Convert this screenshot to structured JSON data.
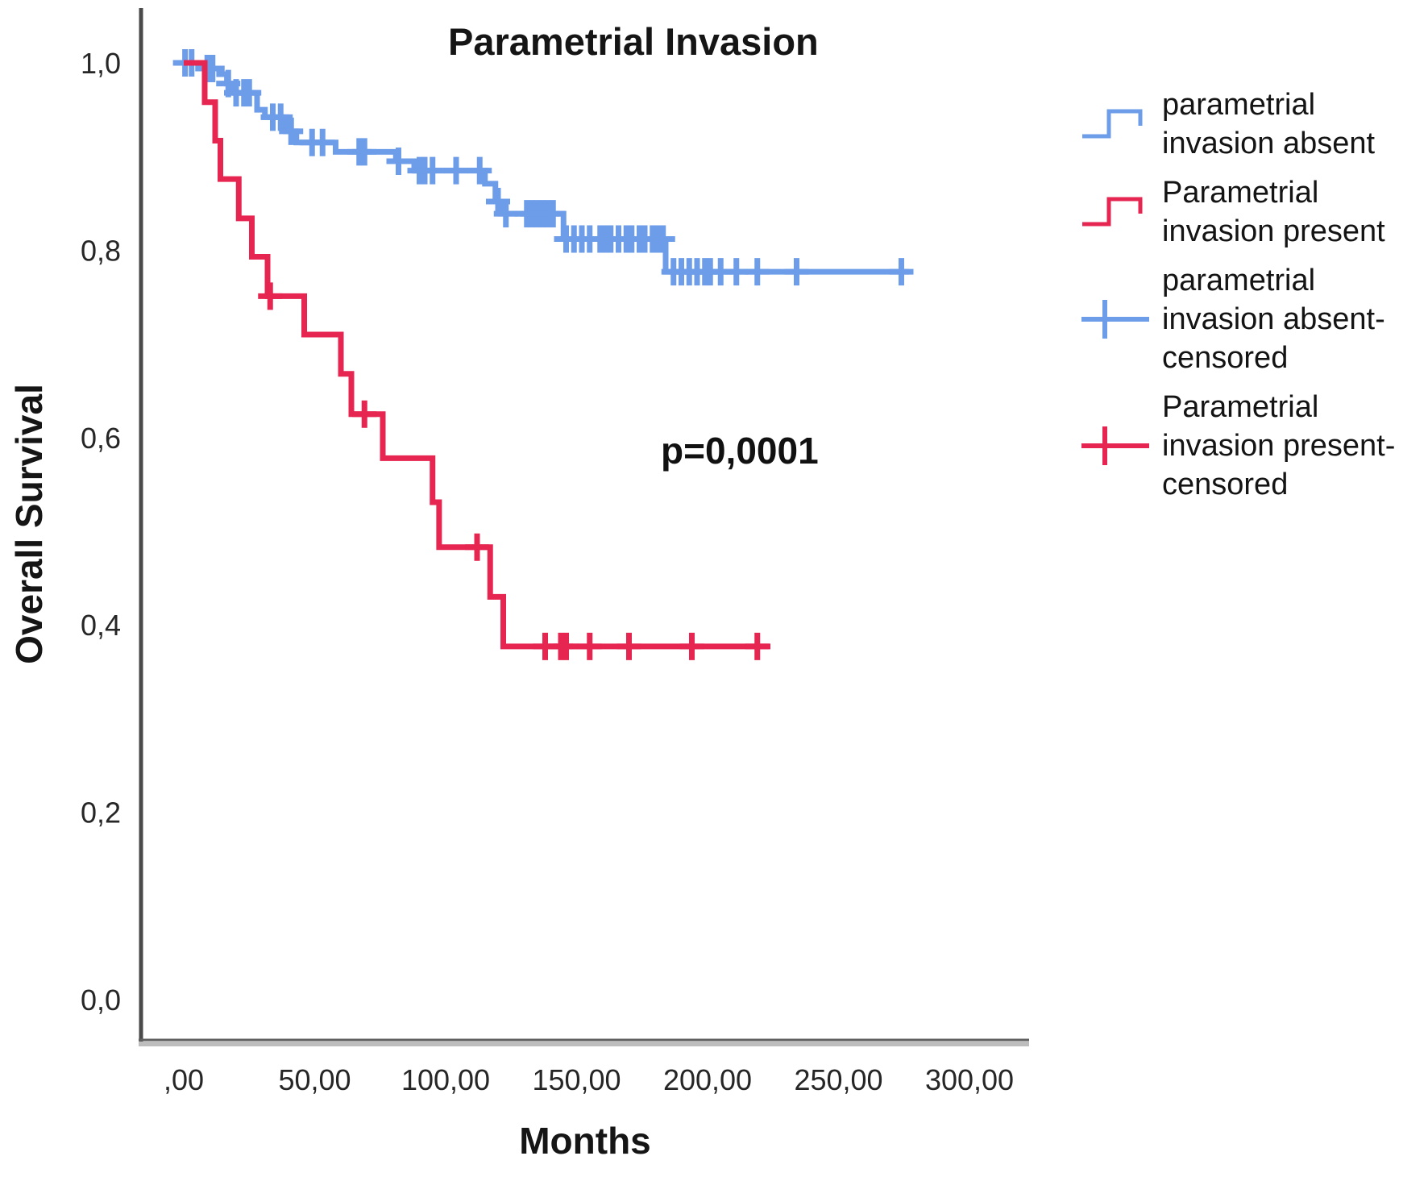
{
  "chart_data": {
    "type": "line",
    "subtype": "kaplan_meier_step_plot",
    "title": "Parametrial Invasion",
    "xlabel": "Months",
    "ylabel": "Overall Survival",
    "annotation": {
      "text": "p=0,0001"
    },
    "xlim": [
      0,
      300
    ],
    "ylim": [
      0.0,
      1.0
    ],
    "grid": "off",
    "x_ticks": {
      "values": [
        0,
        50,
        100,
        150,
        200,
        250,
        300
      ],
      "labels": [
        ",00",
        "50,00",
        "100,00",
        "150,00",
        "200,00",
        "250,00",
        "300,00"
      ]
    },
    "y_ticks": {
      "values": [
        0.0,
        0.2,
        0.4,
        0.6,
        0.8,
        1.0
      ],
      "labels": [
        "0,0",
        "0,2",
        "0,4",
        "0,6",
        "0,8",
        "1,0"
      ]
    },
    "series": [
      {
        "name": "parametrial invasion absent",
        "color": "#6D9DE8",
        "steps": [
          [
            0,
            1.0
          ],
          [
            8,
            0.994
          ],
          [
            13.5,
            0.988
          ],
          [
            16.5,
            0.978
          ],
          [
            19,
            0.968
          ],
          [
            28,
            0.95
          ],
          [
            31,
            0.942
          ],
          [
            39,
            0.927
          ],
          [
            43,
            0.915
          ],
          [
            58,
            0.905
          ],
          [
            81,
            0.895
          ],
          [
            88,
            0.885
          ],
          [
            115,
            0.871
          ],
          [
            119,
            0.852
          ],
          [
            121,
            0.839
          ],
          [
            145,
            0.812
          ],
          [
            184,
            0.777
          ]
        ],
        "end_time": 277,
        "censored_times": [
          0.5,
          3,
          9,
          11,
          17,
          20,
          23,
          25,
          34,
          37,
          41,
          49,
          53,
          67,
          69,
          82,
          90,
          92,
          95,
          104,
          113,
          120,
          123,
          131,
          133,
          135,
          137,
          139,
          141,
          146,
          149,
          152,
          155,
          159,
          161,
          163,
          166,
          169,
          171,
          174,
          176,
          179,
          181,
          183,
          187,
          190,
          193,
          196,
          199,
          201,
          205,
          211,
          219,
          234,
          274
        ]
      },
      {
        "name": "Parametrial invasion present",
        "color": "#E62550",
        "steps": [
          [
            0,
            1.0
          ],
          [
            8,
            0.958
          ],
          [
            12,
            0.917
          ],
          [
            14,
            0.876
          ],
          [
            21,
            0.834
          ],
          [
            26,
            0.793
          ],
          [
            32,
            0.751
          ],
          [
            46,
            0.71
          ],
          [
            60,
            0.668
          ],
          [
            64,
            0.625
          ],
          [
            76,
            0.578
          ],
          [
            95,
            0.531
          ],
          [
            97.5,
            0.483
          ],
          [
            117,
            0.43
          ],
          [
            122,
            0.377
          ]
        ],
        "end_time": 224,
        "censored_times": [
          33,
          69,
          112,
          138,
          144,
          146,
          155,
          170,
          194,
          219
        ]
      }
    ],
    "legend": {
      "position": "right",
      "items": [
        {
          "label": "parametrial invasion absent",
          "marker": "step",
          "color": "#6D9DE8"
        },
        {
          "label": "Parametrial invasion present",
          "marker": "step",
          "color": "#E62550"
        },
        {
          "label": "parametrial invasion absent-censored",
          "marker": "plus",
          "color": "#6D9DE8"
        },
        {
          "label": "Parametrial invasion present-censored",
          "marker": "plus",
          "color": "#E62550"
        }
      ]
    }
  }
}
